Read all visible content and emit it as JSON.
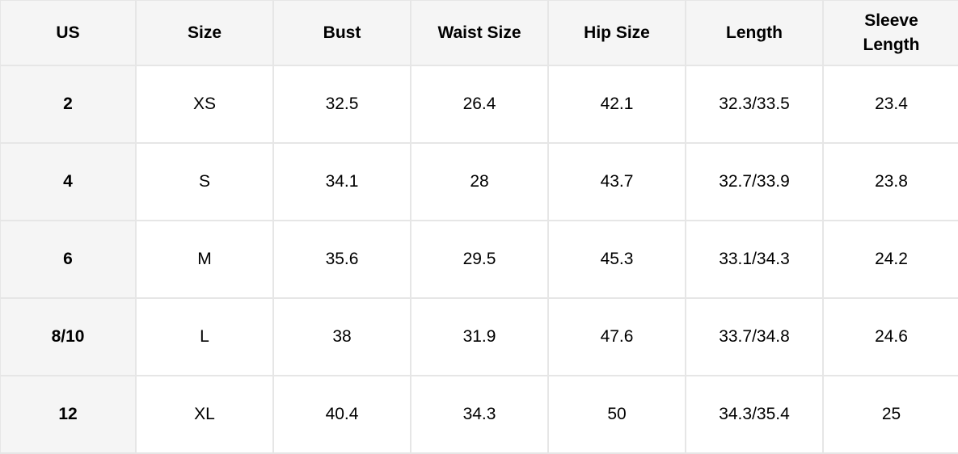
{
  "headers": [
    "US",
    "Size",
    "Bust",
    "Waist Size",
    "Hip Size",
    "Length",
    "Sleeve Length"
  ],
  "rows": [
    [
      "2",
      "XS",
      "32.5",
      "26.4",
      "42.1",
      "32.3/33.5",
      "23.4"
    ],
    [
      "4",
      "S",
      "34.1",
      "28",
      "43.7",
      "32.7/33.9",
      "23.8"
    ],
    [
      "6",
      "M",
      "35.6",
      "29.5",
      "45.3",
      "33.1/34.3",
      "24.2"
    ],
    [
      "8/10",
      "L",
      "38",
      "31.9",
      "47.6",
      "33.7/34.8",
      "24.6"
    ],
    [
      "12",
      "XL",
      "40.4",
      "34.3",
      "50",
      "34.3/35.4",
      "25"
    ]
  ],
  "colors": {
    "header_bg": "#f5f5f5",
    "border": "#e6e6e6"
  }
}
